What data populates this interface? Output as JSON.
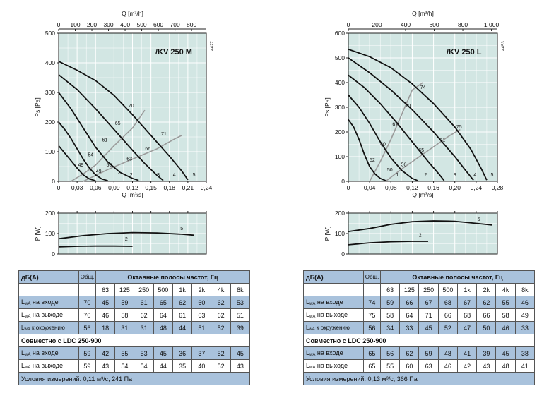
{
  "chart_data": [
    {
      "type": "line",
      "title": "/KV 250 M",
      "code": "4427",
      "top_axis_label": "Q [m³/h]",
      "top_ticks": [
        "0",
        "100",
        "200",
        "300",
        "400",
        "500",
        "600",
        "700",
        "800"
      ],
      "xlabel": "Q [m³/s]",
      "x_ticks": [
        "0",
        "0,03",
        "0,06",
        "0,09",
        "0,12",
        "0,15",
        "0,18",
        "0,21",
        "0,24"
      ],
      "xlim": [
        0,
        0.24
      ],
      "ylabel": "Ps [Pa]",
      "y_ticks": [
        "0",
        "100",
        "200",
        "300",
        "400",
        "500"
      ],
      "ylim": [
        0,
        500
      ],
      "fan_curves": [
        {
          "name": "1",
          "points": [
            [
              0,
              120
            ],
            [
              0.01,
              95
            ],
            [
              0.02,
              70
            ],
            [
              0.03,
              45
            ],
            [
              0.04,
              22
            ],
            [
              0.05,
              8
            ],
            [
              0.06,
              2
            ]
          ]
        },
        {
          "name": "2",
          "points": [
            [
              0,
              200
            ],
            [
              0.01,
              175
            ],
            [
              0.02,
              145
            ],
            [
              0.03,
              110
            ],
            [
              0.04,
              75
            ],
            [
              0.05,
              45
            ],
            [
              0.06,
              22
            ],
            [
              0.07,
              8
            ],
            [
              0.08,
              2
            ]
          ]
        },
        {
          "name": "3",
          "points": [
            [
              0,
              300
            ],
            [
              0.02,
              245
            ],
            [
              0.04,
              180
            ],
            [
              0.06,
              115
            ],
            [
              0.08,
              65
            ],
            [
              0.1,
              30
            ],
            [
              0.12,
              10
            ],
            [
              0.13,
              3
            ]
          ]
        },
        {
          "name": "4",
          "points": [
            [
              0,
              360
            ],
            [
              0.03,
              310
            ],
            [
              0.06,
              245
            ],
            [
              0.09,
              175
            ],
            [
              0.12,
              105
            ],
            [
              0.14,
              60
            ],
            [
              0.16,
              20
            ],
            [
              0.17,
              3
            ]
          ]
        },
        {
          "name": "5",
          "points": [
            [
              0,
              405
            ],
            [
              0.03,
              375
            ],
            [
              0.06,
              340
            ],
            [
              0.09,
              290
            ],
            [
              0.12,
              225
            ],
            [
              0.15,
              155
            ],
            [
              0.18,
              85
            ],
            [
              0.2,
              35
            ],
            [
              0.21,
              5
            ]
          ]
        }
      ],
      "curve_labels": [
        {
          "text": "1",
          "x": 0.098,
          "y": 17
        },
        {
          "text": "2",
          "x": 0.118,
          "y": 17
        },
        {
          "text": "3",
          "x": 0.162,
          "y": 17
        },
        {
          "text": "4",
          "x": 0.188,
          "y": 17
        },
        {
          "text": "5",
          "x": 0.22,
          "y": 17
        }
      ],
      "sound_curves": [
        {
          "points": [
            [
              0.02,
              0
            ],
            [
              0.04,
              25
            ],
            [
              0.06,
              55
            ],
            [
              0.09,
              120
            ],
            [
              0.12,
              180
            ],
            [
              0.14,
              240
            ]
          ]
        },
        {
          "points": [
            [
              0.04,
              0
            ],
            [
              0.08,
              40
            ],
            [
              0.12,
              75
            ],
            [
              0.16,
              110
            ],
            [
              0.19,
              145
            ],
            [
              0.2,
              155
            ]
          ]
        }
      ],
      "sound_labels": [
        {
          "text": "49",
          "x": 0.036,
          "y": 50
        },
        {
          "text": "49",
          "x": 0.065,
          "y": 28
        },
        {
          "text": "54",
          "x": 0.052,
          "y": 85
        },
        {
          "text": "56",
          "x": 0.082,
          "y": 50
        },
        {
          "text": "61",
          "x": 0.075,
          "y": 135
        },
        {
          "text": "63",
          "x": 0.115,
          "y": 70
        },
        {
          "text": "65",
          "x": 0.096,
          "y": 190
        },
        {
          "text": "66",
          "x": 0.145,
          "y": 105
        },
        {
          "text": "70",
          "x": 0.118,
          "y": 250
        },
        {
          "text": "71",
          "x": 0.171,
          "y": 155
        }
      ],
      "power": {
        "ylabel": "P [W]",
        "y_ticks": [
          "0",
          "100",
          "200"
        ],
        "ylim": [
          0,
          200
        ],
        "curves": [
          {
            "name": "5",
            "points": [
              [
                0,
                75
              ],
              [
                0.04,
                90
              ],
              [
                0.08,
                100
              ],
              [
                0.12,
                105
              ],
              [
                0.16,
                103
              ],
              [
                0.2,
                97
              ],
              [
                0.22,
                92
              ]
            ]
          },
          {
            "name": "2",
            "points": [
              [
                0,
                35
              ],
              [
                0.03,
                38
              ],
              [
                0.06,
                39
              ],
              [
                0.09,
                39
              ],
              [
                0.12,
                38
              ]
            ]
          }
        ],
        "labels": [
          {
            "text": "5",
            "x": 0.2,
            "y": 118
          },
          {
            "text": "2",
            "x": 0.11,
            "y": 65
          }
        ]
      }
    },
    {
      "type": "line",
      "title": "/KV 250 L",
      "code": "4453",
      "top_axis_label": "Q [m³/h]",
      "top_ticks": [
        "0",
        "200",
        "400",
        "600",
        "800",
        "1 000"
      ],
      "xlabel": "Q [m³/s]",
      "x_ticks": [
        "0",
        "0,04",
        "0,08",
        "0,12",
        "0,16",
        "0,20",
        "0,24",
        "0,28"
      ],
      "xlim": [
        0,
        0.28
      ],
      "ylabel": "Ps [Pa]",
      "y_ticks": [
        "0",
        "100",
        "200",
        "300",
        "400",
        "500",
        "600"
      ],
      "ylim": [
        0,
        600
      ],
      "fan_curves": [
        {
          "name": "1",
          "points": [
            [
              0,
              250
            ],
            [
              0.01,
              220
            ],
            [
              0.02,
              170
            ],
            [
              0.03,
              110
            ],
            [
              0.04,
              60
            ],
            [
              0.05,
              30
            ],
            [
              0.06,
              12
            ],
            [
              0.07,
              3
            ]
          ]
        },
        {
          "name": "2",
          "points": [
            [
              0,
              350
            ],
            [
              0.02,
              300
            ],
            [
              0.04,
              235
            ],
            [
              0.06,
              160
            ],
            [
              0.08,
              95
            ],
            [
              0.1,
              45
            ],
            [
              0.12,
              12
            ],
            [
              0.13,
              3
            ]
          ]
        },
        {
          "name": "3",
          "points": [
            [
              0,
              430
            ],
            [
              0.03,
              380
            ],
            [
              0.06,
              315
            ],
            [
              0.09,
              240
            ],
            [
              0.12,
              160
            ],
            [
              0.15,
              80
            ],
            [
              0.17,
              30
            ],
            [
              0.18,
              3
            ]
          ]
        },
        {
          "name": "4",
          "points": [
            [
              0,
              500
            ],
            [
              0.04,
              440
            ],
            [
              0.08,
              370
            ],
            [
              0.12,
              290
            ],
            [
              0.16,
              200
            ],
            [
              0.2,
              100
            ],
            [
              0.22,
              45
            ],
            [
              0.235,
              5
            ]
          ]
        },
        {
          "name": "5",
          "points": [
            [
              0,
              535
            ],
            [
              0.04,
              505
            ],
            [
              0.08,
              460
            ],
            [
              0.12,
              395
            ],
            [
              0.16,
              315
            ],
            [
              0.2,
              220
            ],
            [
              0.23,
              130
            ],
            [
              0.25,
              50
            ],
            [
              0.26,
              5
            ]
          ]
        }
      ],
      "curve_labels": [
        {
          "text": "1",
          "x": 0.092,
          "y": 20
        },
        {
          "text": "2",
          "x": 0.145,
          "y": 20
        },
        {
          "text": "3",
          "x": 0.2,
          "y": 20
        },
        {
          "text": "4",
          "x": 0.238,
          "y": 20
        },
        {
          "text": "5",
          "x": 0.27,
          "y": 20
        }
      ],
      "sound_curves": [
        {
          "points": [
            [
              0.04,
              0
            ],
            [
              0.06,
              80
            ],
            [
              0.08,
              170
            ],
            [
              0.1,
              270
            ],
            [
              0.12,
              370
            ],
            [
              0.14,
              400
            ]
          ]
        },
        {
          "points": [
            [
              0.07,
              0
            ],
            [
              0.1,
              50
            ],
            [
              0.13,
              95
            ],
            [
              0.16,
              140
            ],
            [
              0.19,
              185
            ],
            [
              0.21,
              210
            ]
          ]
        }
      ],
      "sound_labels": [
        {
          "text": "52",
          "x": 0.045,
          "y": 80
        },
        {
          "text": "50",
          "x": 0.078,
          "y": 40
        },
        {
          "text": "60",
          "x": 0.065,
          "y": 145
        },
        {
          "text": "56",
          "x": 0.104,
          "y": 62
        },
        {
          "text": "67",
          "x": 0.088,
          "y": 225
        },
        {
          "text": "65",
          "x": 0.137,
          "y": 120
        },
        {
          "text": "70",
          "x": 0.112,
          "y": 300
        },
        {
          "text": "71",
          "x": 0.177,
          "y": 160
        },
        {
          "text": "74",
          "x": 0.14,
          "y": 375
        },
        {
          "text": "75",
          "x": 0.208,
          "y": 215
        }
      ],
      "power": {
        "ylabel": "P [W]",
        "y_ticks": [
          "0",
          "100",
          "200"
        ],
        "ylim": [
          0,
          200
        ],
        "curves": [
          {
            "name": "5",
            "points": [
              [
                0,
                110
              ],
              [
                0.04,
                125
              ],
              [
                0.08,
                145
              ],
              [
                0.12,
                158
              ],
              [
                0.16,
                162
              ],
              [
                0.2,
                160
              ],
              [
                0.24,
                150
              ],
              [
                0.27,
                142
              ]
            ]
          },
          {
            "name": "2",
            "points": [
              [
                0,
                45
              ],
              [
                0.04,
                55
              ],
              [
                0.08,
                60
              ],
              [
                0.12,
                62
              ],
              [
                0.15,
                62
              ]
            ]
          }
        ],
        "labels": [
          {
            "text": "5",
            "x": 0.245,
            "y": 162
          },
          {
            "text": "2",
            "x": 0.135,
            "y": 85
          }
        ]
      }
    }
  ],
  "tables": [
    {
      "header_label": "дБ(А)",
      "total_label": "Общ.",
      "bands_title": "Октавные полосы частот, Гц",
      "bands": [
        "63",
        "125",
        "250",
        "500",
        "1k",
        "2k",
        "4k",
        "8k"
      ],
      "rows": [
        {
          "pre": "L",
          "sub": "wA",
          "text": " на входе",
          "total": "70",
          "values": [
            "45",
            "59",
            "61",
            "65",
            "62",
            "60",
            "62",
            "53"
          ]
        },
        {
          "pre": "L",
          "sub": "wA",
          "text": " на выходе",
          "total": "70",
          "values": [
            "46",
            "58",
            "62",
            "64",
            "61",
            "63",
            "62",
            "51"
          ]
        },
        {
          "pre": "L",
          "sub": "wA",
          "text": " к окружению",
          "total": "56",
          "values": [
            "18",
            "31",
            "31",
            "48",
            "44",
            "51",
            "52",
            "39"
          ]
        }
      ],
      "section_title": "Совместно с LDC 250-900",
      "rows2": [
        {
          "pre": "L",
          "sub": "wA",
          "text": " на входе",
          "total": "59",
          "values": [
            "42",
            "55",
            "53",
            "45",
            "36",
            "37",
            "52",
            "45"
          ]
        },
        {
          "pre": "L",
          "sub": "wA",
          "text": " на выходе",
          "total": "59",
          "values": [
            "43",
            "54",
            "54",
            "44",
            "35",
            "40",
            "52",
            "43"
          ]
        }
      ],
      "conditions": "Условия измерений: 0,11 м³/с, 241 Па"
    },
    {
      "header_label": "дБ(А)",
      "total_label": "Общ.",
      "bands_title": "Октавные полосы частот, Гц",
      "bands": [
        "63",
        "125",
        "250",
        "500",
        "1k",
        "2k",
        "4k",
        "8k"
      ],
      "rows": [
        {
          "pre": "L",
          "sub": "wA",
          "text": " на входе",
          "total": "74",
          "values": [
            "59",
            "66",
            "67",
            "68",
            "67",
            "62",
            "55",
            "46"
          ]
        },
        {
          "pre": "L",
          "sub": "wA",
          "text": " на выходе",
          "total": "75",
          "values": [
            "58",
            "64",
            "71",
            "66",
            "68",
            "66",
            "58",
            "49"
          ]
        },
        {
          "pre": "L",
          "sub": "wA",
          "text": " к окружению",
          "total": "56",
          "values": [
            "34",
            "33",
            "45",
            "52",
            "47",
            "50",
            "46",
            "33"
          ]
        }
      ],
      "section_title": "Совместно с LDC 250-900",
      "rows2": [
        {
          "pre": "L",
          "sub": "wA",
          "text": " на входе",
          "total": "65",
          "values": [
            "56",
            "62",
            "59",
            "48",
            "41",
            "39",
            "45",
            "38"
          ]
        },
        {
          "pre": "L",
          "sub": "wA",
          "text": " на выходе",
          "total": "65",
          "values": [
            "55",
            "60",
            "63",
            "46",
            "42",
            "43",
            "48",
            "41"
          ]
        }
      ],
      "conditions": "Условия измерений: 0,13 м³/с, 366 Па"
    }
  ]
}
